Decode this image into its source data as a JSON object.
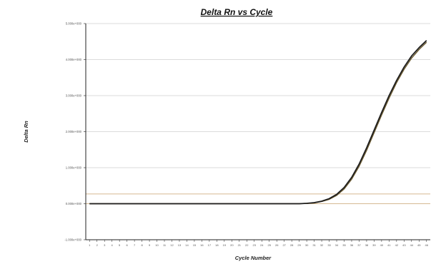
{
  "chart_data": {
    "type": "line",
    "title": "Delta Rn vs Cycle",
    "xlabel": "Cycle Number",
    "ylabel": "Delta Rn",
    "x": [
      1,
      2,
      3,
      4,
      5,
      6,
      7,
      8,
      9,
      10,
      11,
      12,
      13,
      14,
      15,
      16,
      17,
      18,
      19,
      20,
      21,
      22,
      23,
      24,
      25,
      26,
      27,
      28,
      29,
      30,
      31,
      32,
      33,
      34,
      35,
      36,
      37,
      38,
      39,
      40,
      41,
      42,
      43,
      44,
      45,
      46
    ],
    "xlim": [
      0.5,
      46.5
    ],
    "y_ticks": [
      "-1.000e+000",
      "0.000e+000",
      "1.000e+000",
      "2.000e+000",
      "3.000e+000",
      "4.000e+000",
      "5.000e+000"
    ],
    "ylim": [
      -1.0,
      5.0
    ],
    "threshold": 0.27,
    "grid": true,
    "colors": {
      "grid": "#cfcfcf",
      "threshold": "#c9a26e",
      "curve_primary": "#1f1f1f",
      "curve_secondary": "#6b5a2f",
      "axis": "#222222"
    },
    "series": [
      {
        "values": [
          0.0,
          0.0,
          0.0,
          0.0,
          0.0,
          0.0,
          0.0,
          0.0,
          0.0,
          0.0,
          0.0,
          0.0,
          0.0,
          0.0,
          0.0,
          0.0,
          0.0,
          0.0,
          0.0,
          0.0,
          0.0,
          0.0,
          0.0,
          0.0,
          0.0,
          0.0,
          0.0,
          0.0,
          0.0,
          0.01,
          0.03,
          0.07,
          0.14,
          0.26,
          0.45,
          0.73,
          1.1,
          1.55,
          2.04,
          2.53,
          3.0,
          3.42,
          3.79,
          4.1,
          4.33,
          4.53
        ]
      },
      {
        "values": [
          0.0,
          0.0,
          0.0,
          0.0,
          0.0,
          0.0,
          0.0,
          0.0,
          0.0,
          0.0,
          0.0,
          0.0,
          0.0,
          0.0,
          0.0,
          0.0,
          0.0,
          0.0,
          0.0,
          0.0,
          0.0,
          0.0,
          0.0,
          0.0,
          0.0,
          0.0,
          0.0,
          0.0,
          0.0,
          0.01,
          0.02,
          0.06,
          0.12,
          0.23,
          0.41,
          0.68,
          1.04,
          1.48,
          1.97,
          2.46,
          2.93,
          3.36,
          3.73,
          4.04,
          4.28,
          4.48
        ]
      }
    ]
  }
}
